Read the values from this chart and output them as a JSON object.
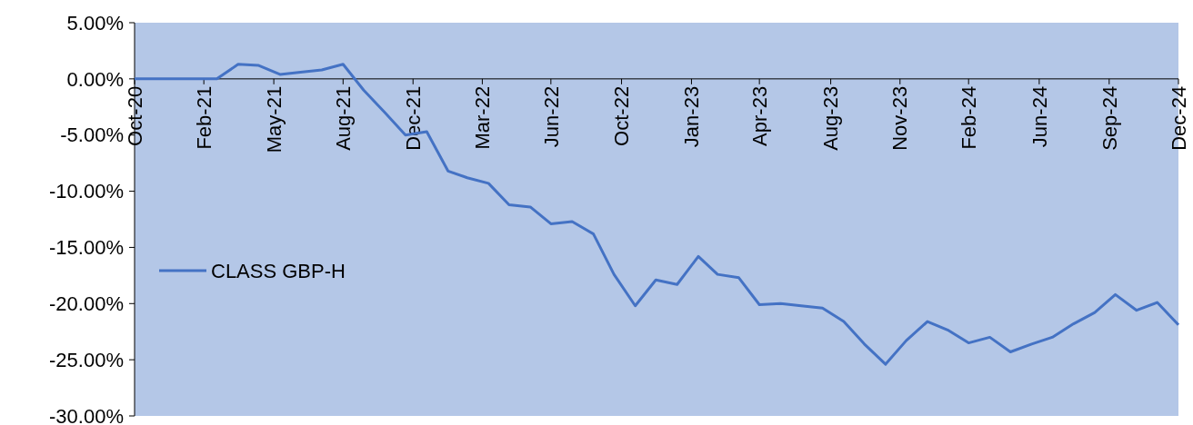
{
  "chart_data": {
    "type": "line",
    "x": [
      "2020-10-31",
      "2020-11-30",
      "2020-12-31",
      "2021-01-31",
      "2021-02-28",
      "2021-03-31",
      "2021-04-30",
      "2021-05-31",
      "2021-06-30",
      "2021-07-31",
      "2021-08-31",
      "2021-09-30",
      "2021-10-31",
      "2021-11-30",
      "2021-12-31",
      "2022-01-31",
      "2022-02-28",
      "2022-03-31",
      "2022-04-30",
      "2022-05-31",
      "2022-06-30",
      "2022-07-31",
      "2022-08-31",
      "2022-09-30",
      "2022-10-31",
      "2022-11-30",
      "2022-12-31",
      "2023-01-31",
      "2023-02-28",
      "2023-03-31",
      "2023-04-30",
      "2023-05-31",
      "2023-06-30",
      "2023-07-31",
      "2023-08-31",
      "2023-09-30",
      "2023-10-31",
      "2023-11-30",
      "2023-12-31",
      "2024-01-31",
      "2024-02-29",
      "2024-03-31",
      "2024-04-30",
      "2024-05-31",
      "2024-06-30",
      "2024-07-31",
      "2024-08-31",
      "2024-09-30",
      "2024-10-31",
      "2024-11-30",
      "2024-12-31"
    ],
    "series": [
      {
        "name": "CLASS GBP-H",
        "color": "#4472c4",
        "values": [
          0,
          0,
          0,
          0,
          0,
          1.3,
          1.2,
          0.4,
          0.6,
          0.8,
          1.3,
          -1.0,
          -3.0,
          -5.0,
          -4.7,
          -8.2,
          -8.8,
          -9.3,
          -11.2,
          -11.4,
          -12.9,
          -12.7,
          -13.8,
          -17.4,
          -20.2,
          -17.9,
          -18.3,
          -15.8,
          -17.4,
          -17.7,
          -20.1,
          -20.0,
          -20.2,
          -20.4,
          -21.6,
          -23.6,
          -25.4,
          -23.3,
          -21.6,
          -22.4,
          -23.5,
          -23.0,
          -24.3,
          -23.6,
          -23.0,
          -21.8,
          -20.8,
          -19.2,
          -20.6,
          -19.9,
          -21.9
        ]
      }
    ],
    "xlim": [
      "2020-10-31",
      "2024-12-31"
    ],
    "xticks": [
      {
        "value": "2020-10-31",
        "label": "Oct-20"
      },
      {
        "value": "2021-02-09",
        "label": "Feb-21"
      },
      {
        "value": "2021-05-22",
        "label": "May-21"
      },
      {
        "value": "2021-08-31",
        "label": "Aug-21"
      },
      {
        "value": "2021-12-11",
        "label": "Dec-21"
      },
      {
        "value": "2022-03-22",
        "label": "Mar-22"
      },
      {
        "value": "2022-06-30",
        "label": "Jun-22"
      },
      {
        "value": "2022-10-11",
        "label": "Oct-22"
      },
      {
        "value": "2023-01-21",
        "label": "Jan-23"
      },
      {
        "value": "2023-04-30",
        "label": "Apr-23"
      },
      {
        "value": "2023-08-12",
        "label": "Aug-23"
      },
      {
        "value": "2023-11-21",
        "label": "Nov-23"
      },
      {
        "value": "2024-02-29",
        "label": "Feb-24"
      },
      {
        "value": "2024-06-11",
        "label": "Jun-24"
      },
      {
        "value": "2024-09-21",
        "label": "Sep-24"
      },
      {
        "value": "2024-12-31",
        "label": "Dec-24"
      }
    ],
    "ylim": [
      -30,
      5
    ],
    "yticks": [
      {
        "value": 5,
        "label": "5.00%"
      },
      {
        "value": 0,
        "label": "0.00%"
      },
      {
        "value": -5,
        "label": "-5.00%"
      },
      {
        "value": -10,
        "label": "-10.00%"
      },
      {
        "value": -15,
        "label": "-15.00%"
      },
      {
        "value": -20,
        "label": "-20.00%"
      },
      {
        "value": -25,
        "label": "-25.00%"
      },
      {
        "value": -30,
        "label": "-30.00%"
      }
    ],
    "grid": false,
    "legend": "left",
    "marker": "none",
    "line_style": "solid"
  }
}
